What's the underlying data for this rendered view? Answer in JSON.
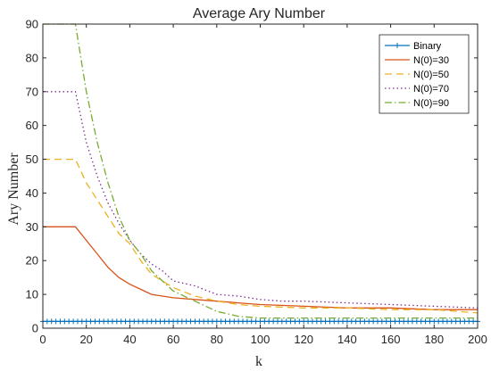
{
  "chart_data": {
    "type": "line",
    "title": "Average Ary Number",
    "xlabel": "k",
    "ylabel": "Ary Number",
    "xlim": [
      0,
      200
    ],
    "ylim": [
      0,
      90
    ],
    "xticks": [
      "0",
      "20",
      "40",
      "60",
      "80",
      "100",
      "120",
      "140",
      "160",
      "180",
      "200"
    ],
    "yticks": [
      "0",
      "10",
      "20",
      "30",
      "40",
      "50",
      "60",
      "70",
      "80",
      "90"
    ],
    "grid": false,
    "legend_position": "top-right",
    "series": [
      {
        "name": "Binary",
        "color": "#0072BD",
        "style": "solid-plus",
        "x": [
          0,
          200
        ],
        "y": [
          2,
          2
        ]
      },
      {
        "name": "N(0)=30",
        "color": "#D95319",
        "style": "solid",
        "x": [
          0,
          15,
          20,
          25,
          30,
          35,
          40,
          45,
          50,
          55,
          60,
          70,
          80,
          90,
          100,
          120,
          140,
          160,
          180,
          200
        ],
        "y": [
          30,
          30,
          26,
          22,
          18,
          15,
          13,
          11.5,
          10,
          9.5,
          9,
          8.5,
          8,
          7.5,
          7,
          6.5,
          6,
          6,
          5.5,
          5.5
        ]
      },
      {
        "name": "N(0)=50",
        "color": "#EDB120",
        "style": "dashed",
        "x": [
          0,
          15,
          20,
          25,
          30,
          35,
          40,
          45,
          50,
          55,
          60,
          70,
          80,
          90,
          100,
          120,
          140,
          160,
          180,
          200
        ],
        "y": [
          50,
          50,
          43,
          38,
          33,
          28,
          25,
          20,
          16,
          14,
          12,
          9.5,
          8,
          7,
          6.5,
          6,
          6,
          5.5,
          5.5,
          4.5
        ]
      },
      {
        "name": "N(0)=70",
        "color": "#7E2F8E",
        "style": "dotted",
        "x": [
          0,
          15,
          20,
          25,
          30,
          35,
          40,
          45,
          50,
          55,
          60,
          70,
          80,
          90,
          100,
          110,
          120,
          140,
          160,
          180,
          200
        ],
        "y": [
          70,
          70,
          55,
          45,
          37,
          31,
          26,
          22,
          19,
          17,
          14,
          12.5,
          10,
          9.5,
          8.5,
          8,
          8,
          7.5,
          7,
          6.5,
          6
        ]
      },
      {
        "name": "N(0)=90",
        "color": "#77AC30",
        "style": "dashdot",
        "x": [
          0,
          15,
          20,
          25,
          30,
          35,
          40,
          45,
          50,
          55,
          60,
          70,
          80,
          90,
          100,
          120,
          140,
          160,
          180,
          200
        ],
        "y": [
          90,
          90,
          70,
          55,
          43,
          33,
          26,
          22,
          17,
          14,
          11,
          8,
          5,
          3.5,
          3,
          3,
          3,
          3,
          3,
          3
        ]
      }
    ]
  }
}
